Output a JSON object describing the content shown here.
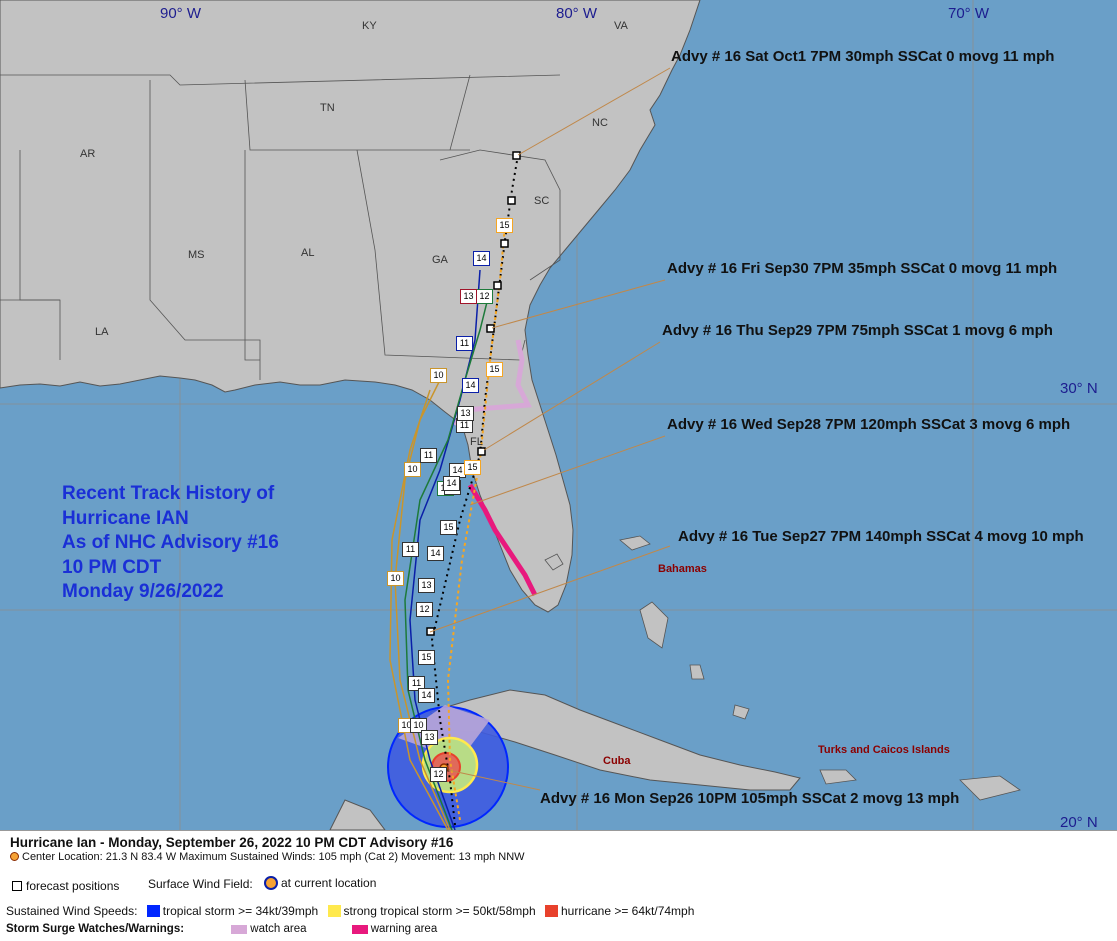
{
  "map": {
    "lon_labels": [
      "90° W",
      "80° W",
      "70° W"
    ],
    "lat_labels": [
      "30° N",
      "20° N"
    ],
    "states": [
      "KY",
      "VA",
      "TN",
      "NC",
      "AR",
      "SC",
      "MS",
      "AL",
      "GA",
      "LA",
      "FL"
    ],
    "countries": [
      "Bahamas",
      "Cuba",
      "Turks and Caicos Islands"
    ],
    "colors": {
      "ocean": "#6a9fc8",
      "land": "#c2c2c2",
      "tropical_storm": "#0026ff",
      "strong_tropical_storm": "#ffe94d",
      "hurricane": "#e8412c",
      "watch": "#d7a8d7",
      "warning": "#e8197d"
    }
  },
  "advisories": [
    "Advy # 16 Sat Oct1 7PM  30mph SSCat 0 movg 11 mph",
    "Advy # 16 Fri Sep30 7PM  35mph SSCat 0 movg 11 mph",
    "Advy # 16 Thu Sep29 7PM  75mph SSCat 1 movg 6 mph",
    "Advy # 16 Wed Sep28 7PM  120mph SSCat 3 movg 6 mph",
    "Advy # 16 Tue Sep27 7PM  140mph SSCat 4 movg 10 mph",
    "Advy # 16 Mon Sep26 10PM  105mph SSCat 2 movg 13 mph"
  ],
  "recent_track": [
    "Recent Track History of",
    "Hurricane IAN",
    "As of NHC Advisory #16",
    "10 PM CDT",
    "Monday 9/26/2022"
  ],
  "forecast_labels": [
    "10",
    "10",
    "10",
    "10",
    "10",
    "11",
    "11",
    "11",
    "11",
    "11",
    "12",
    "12",
    "12",
    "12",
    "12",
    "13",
    "13",
    "13",
    "13",
    "14",
    "14",
    "14",
    "14",
    "14",
    "14",
    "15",
    "15",
    "15",
    "15",
    "15"
  ],
  "legend": {
    "title": "Hurricane Ian  -  Monday, September 26, 2022  10 PM CDT   Advisory #16",
    "center": "Center Location: 21.3 N  83.4 W   Maximum Sustained Winds: 105 mph (Cat 2) Movement: 13 mph NNW",
    "forecast_positions": "forecast positions",
    "surface_wind_field": "Surface Wind Field:",
    "at_current_location": "at current location",
    "sustained_wind_speeds": "Sustained Wind Speeds:",
    "tropical_storm": "tropical storm >= 34kt/39mph",
    "strong_tropical_storm": "strong tropical storm >= 50kt/58mph",
    "hurricane": "hurricane >= 64kt/74mph",
    "storm_surge": "Storm Surge Watches/Warnings:",
    "watch_area": "watch area",
    "warning_area": "warning area"
  }
}
